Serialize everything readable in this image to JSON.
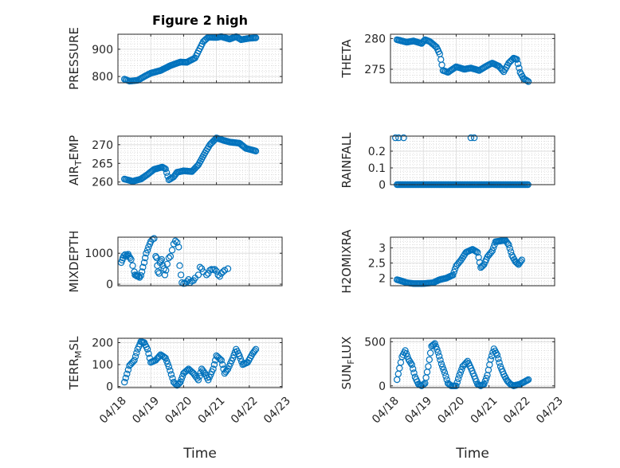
{
  "figure": {
    "title": "Figure 2 high",
    "xlabel": "Time",
    "marker_color": "#0072BD",
    "axis_color": "#262626",
    "x_tick_labels": [
      "04/18",
      "04/19",
      "04/20",
      "04/21",
      "04/22",
      "04/23"
    ]
  },
  "chart_data": [
    {
      "type": "scatter",
      "ylabel": "PRESSURE",
      "x_axis": "time (day)",
      "xlim": [
        18,
        23
      ],
      "ylim": [
        777,
        955
      ],
      "yticks": [
        800,
        900
      ],
      "y_tick_labels": [
        "800",
        "900"
      ],
      "x_tick_labels": [
        "04/18",
        "04/19",
        "04/20",
        "04/21",
        "04/22",
        "04/23"
      ],
      "knots": [
        [
          18.2,
          790
        ],
        [
          18.35,
          783
        ],
        [
          18.6,
          786
        ],
        [
          18.85,
          803
        ],
        [
          19.0,
          812
        ],
        [
          19.3,
          822
        ],
        [
          19.6,
          840
        ],
        [
          19.9,
          853
        ],
        [
          20.1,
          852
        ],
        [
          20.35,
          868
        ],
        [
          20.6,
          928
        ],
        [
          20.75,
          944
        ],
        [
          21.0,
          943
        ],
        [
          21.15,
          946
        ],
        [
          21.4,
          937
        ],
        [
          21.6,
          946
        ],
        [
          21.75,
          935
        ],
        [
          22.0,
          940
        ],
        [
          22.2,
          942
        ]
      ]
    },
    {
      "type": "scatter",
      "ylabel": "THETA",
      "xlim": [
        18,
        23
      ],
      "ylim": [
        272.8,
        280.7
      ],
      "yticks": [
        275,
        280
      ],
      "y_tick_labels": [
        "275",
        "280"
      ],
      "x_tick_labels": [
        "04/18",
        "04/19",
        "04/20",
        "04/21",
        "04/22",
        "04/23"
      ],
      "knots": [
        [
          18.2,
          279.8
        ],
        [
          18.5,
          279.4
        ],
        [
          18.7,
          279.6
        ],
        [
          18.95,
          279.2
        ],
        [
          19.05,
          279.8
        ],
        [
          19.2,
          279.5
        ],
        [
          19.4,
          278.6
        ],
        [
          19.5,
          277.5
        ],
        [
          19.6,
          274.8
        ],
        [
          19.75,
          274.5
        ],
        [
          20.0,
          275.4
        ],
        [
          20.25,
          275.0
        ],
        [
          20.45,
          275.2
        ],
        [
          20.7,
          274.8
        ],
        [
          20.95,
          275.6
        ],
        [
          21.1,
          276.0
        ],
        [
          21.3,
          275.5
        ],
        [
          21.45,
          274.6
        ],
        [
          21.6,
          276.0
        ],
        [
          21.75,
          276.8
        ],
        [
          21.85,
          276.6
        ],
        [
          21.95,
          274.5
        ],
        [
          22.05,
          273.5
        ],
        [
          22.2,
          273.0
        ]
      ]
    },
    {
      "type": "scatter",
      "ylabel": "AIR_TEMP",
      "ylabel_parts": {
        "base": "AIR",
        "sub": "T",
        "rest": "EMP"
      },
      "xlim": [
        18,
        23
      ],
      "ylim": [
        259.3,
        272.3
      ],
      "yticks": [
        260,
        265,
        270
      ],
      "y_tick_labels": [
        "260",
        "265",
        "270"
      ],
      "x_tick_labels": [
        "04/18",
        "04/19",
        "04/20",
        "04/21",
        "04/22",
        "04/23"
      ],
      "knots": [
        [
          18.2,
          260.8
        ],
        [
          18.45,
          260.2
        ],
        [
          18.7,
          260.8
        ],
        [
          18.9,
          262.0
        ],
        [
          19.1,
          263.4
        ],
        [
          19.35,
          264.0
        ],
        [
          19.45,
          263.5
        ],
        [
          19.55,
          260.6
        ],
        [
          19.7,
          261.4
        ],
        [
          19.8,
          262.6
        ],
        [
          20.0,
          263.0
        ],
        [
          20.25,
          262.8
        ],
        [
          20.45,
          264.6
        ],
        [
          20.65,
          267.8
        ],
        [
          20.8,
          270.0
        ],
        [
          21.0,
          271.8
        ],
        [
          21.2,
          271.2
        ],
        [
          21.4,
          270.7
        ],
        [
          21.7,
          270.4
        ],
        [
          21.9,
          269.0
        ],
        [
          22.2,
          268.3
        ]
      ]
    },
    {
      "type": "scatter",
      "ylabel": "RAINFALL",
      "xlim": [
        18,
        23
      ],
      "ylim": [
        0,
        0.29
      ],
      "yticks": [
        0,
        0.1,
        0.2
      ],
      "y_tick_labels": [
        "0",
        "0.1",
        "0.2"
      ],
      "x_tick_labels": [
        "04/18",
        "04/19",
        "04/20",
        "04/21",
        "04/22",
        "04/23"
      ],
      "baseline_range": [
        18.2,
        22.2
      ],
      "baseline_value": 0,
      "spikes": [
        [
          18.15,
          0.28
        ],
        [
          18.25,
          0.28
        ],
        [
          18.4,
          0.28
        ],
        [
          20.45,
          0.28
        ],
        [
          20.55,
          0.28
        ]
      ]
    },
    {
      "type": "scatter",
      "ylabel": "MIXDEPTH",
      "xlim": [
        18,
        23
      ],
      "ylim": [
        -50,
        1520
      ],
      "yticks": [
        0,
        1000
      ],
      "y_tick_labels": [
        "0",
        "1000"
      ],
      "x_tick_labels": [
        "04/18",
        "04/19",
        "04/20",
        "04/21",
        "04/22",
        "04/23"
      ],
      "points": [
        [
          18.1,
          700
        ],
        [
          18.13,
          780
        ],
        [
          18.15,
          850
        ],
        [
          18.18,
          920
        ],
        [
          18.22,
          960
        ],
        [
          18.25,
          900
        ],
        [
          18.28,
          940
        ],
        [
          18.31,
          970
        ],
        [
          18.34,
          900
        ],
        [
          18.37,
          850
        ],
        [
          18.4,
          800
        ],
        [
          18.45,
          600
        ],
        [
          18.5,
          400
        ],
        [
          18.52,
          300
        ],
        [
          18.55,
          280
        ],
        [
          18.58,
          260
        ],
        [
          18.6,
          300
        ],
        [
          18.63,
          250
        ],
        [
          18.66,
          220
        ],
        [
          18.7,
          280
        ],
        [
          18.73,
          400
        ],
        [
          18.76,
          550
        ],
        [
          18.8,
          700
        ],
        [
          18.83,
          850
        ],
        [
          18.86,
          1000
        ],
        [
          18.9,
          1100
        ],
        [
          18.93,
          1200
        ],
        [
          18.97,
          1300
        ],
        [
          19.0,
          1380
        ],
        [
          19.05,
          1450
        ],
        [
          19.1,
          1480
        ],
        [
          19.15,
          900
        ],
        [
          19.18,
          850
        ],
        [
          19.2,
          600
        ],
        [
          19.22,
          400
        ],
        [
          19.25,
          350
        ],
        [
          19.28,
          700
        ],
        [
          19.3,
          750
        ],
        [
          19.33,
          800
        ],
        [
          19.37,
          600
        ],
        [
          19.4,
          500
        ],
        [
          19.43,
          300
        ],
        [
          19.46,
          450
        ],
        [
          19.5,
          650
        ],
        [
          19.55,
          850
        ],
        [
          19.6,
          900
        ],
        [
          19.65,
          1100
        ],
        [
          19.7,
          1300
        ],
        [
          19.75,
          1400
        ],
        [
          19.8,
          1350
        ],
        [
          19.85,
          1200
        ],
        [
          19.88,
          600
        ],
        [
          19.92,
          300
        ],
        [
          19.95,
          50
        ],
        [
          20.0,
          20
        ],
        [
          20.05,
          30
        ],
        [
          20.1,
          80
        ],
        [
          20.15,
          150
        ],
        [
          20.2,
          50
        ],
        [
          20.25,
          100
        ],
        [
          20.3,
          120
        ],
        [
          20.35,
          200
        ],
        [
          20.45,
          300
        ],
        [
          20.5,
          550
        ],
        [
          20.55,
          500
        ],
        [
          20.6,
          400
        ],
        [
          20.7,
          300
        ],
        [
          20.75,
          350
        ],
        [
          20.8,
          450
        ],
        [
          20.85,
          480
        ],
        [
          20.9,
          470
        ],
        [
          20.95,
          480
        ],
        [
          21.0,
          420
        ],
        [
          21.05,
          300
        ],
        [
          21.1,
          250
        ],
        [
          21.15,
          350
        ],
        [
          21.2,
          400
        ],
        [
          21.25,
          450
        ],
        [
          21.35,
          500
        ]
      ]
    },
    {
      "type": "scatter",
      "ylabel": "H2OMIXRA",
      "xlim": [
        18,
        23
      ],
      "ylim": [
        1.75,
        3.35
      ],
      "yticks": [
        2,
        2.5,
        3
      ],
      "y_tick_labels": [
        "2",
        "2.5",
        "3"
      ],
      "x_tick_labels": [
        "04/18",
        "04/19",
        "04/20",
        "04/21",
        "04/22",
        "04/23"
      ],
      "knots": [
        [
          18.2,
          1.95
        ],
        [
          18.5,
          1.85
        ],
        [
          18.7,
          1.82
        ],
        [
          19.0,
          1.82
        ],
        [
          19.3,
          1.85
        ],
        [
          19.5,
          1.95
        ],
        [
          19.7,
          2.0
        ],
        [
          19.9,
          2.1
        ],
        [
          20.0,
          2.4
        ],
        [
          20.15,
          2.6
        ],
        [
          20.3,
          2.85
        ],
        [
          20.5,
          2.95
        ],
        [
          20.65,
          2.85
        ],
        [
          20.75,
          2.35
        ],
        [
          20.85,
          2.45
        ],
        [
          20.95,
          2.7
        ],
        [
          21.1,
          2.9
        ],
        [
          21.2,
          3.2
        ],
        [
          21.5,
          3.25
        ],
        [
          21.6,
          3.1
        ],
        [
          21.7,
          2.75
        ],
        [
          21.8,
          2.55
        ],
        [
          21.9,
          2.45
        ],
        [
          22.0,
          2.6
        ]
      ]
    },
    {
      "type": "scatter",
      "ylabel": "TERR_MSL",
      "ylabel_parts": {
        "base": "TERR",
        "sub": "M",
        "rest": "SL"
      },
      "xlim": [
        18,
        23
      ],
      "ylim": [
        -5,
        220
      ],
      "yticks": [
        0,
        100,
        200
      ],
      "y_tick_labels": [
        "0",
        "100",
        "200"
      ],
      "x_tick_labels": [
        "04/18",
        "04/19",
        "04/20",
        "04/21",
        "04/22",
        "04/23"
      ],
      "knots": [
        [
          18.2,
          20
        ],
        [
          18.35,
          95
        ],
        [
          18.5,
          120
        ],
        [
          18.6,
          170
        ],
        [
          18.7,
          205
        ],
        [
          18.8,
          200
        ],
        [
          18.9,
          170
        ],
        [
          19.0,
          110
        ],
        [
          19.15,
          120
        ],
        [
          19.3,
          145
        ],
        [
          19.45,
          130
        ],
        [
          19.55,
          90
        ],
        [
          19.7,
          20
        ],
        [
          19.8,
          5
        ],
        [
          19.9,
          20
        ],
        [
          20.0,
          60
        ],
        [
          20.15,
          80
        ],
        [
          20.3,
          60
        ],
        [
          20.45,
          30
        ],
        [
          20.55,
          80
        ],
        [
          20.65,
          60
        ],
        [
          20.75,
          30
        ],
        [
          20.9,
          80
        ],
        [
          21.0,
          140
        ],
        [
          21.15,
          120
        ],
        [
          21.25,
          60
        ],
        [
          21.35,
          80
        ],
        [
          21.5,
          130
        ],
        [
          21.6,
          170
        ],
        [
          21.7,
          140
        ],
        [
          21.8,
          100
        ],
        [
          21.95,
          110
        ],
        [
          22.1,
          150
        ],
        [
          22.2,
          170
        ]
      ]
    },
    {
      "type": "scatter",
      "ylabel": "SUN_FLUX",
      "ylabel_parts": {
        "base": "SUN",
        "sub": "F",
        "rest": "LUX"
      },
      "xlim": [
        18,
        23
      ],
      "ylim": [
        -20,
        540
      ],
      "yticks": [
        0,
        500
      ],
      "y_tick_labels": [
        "0",
        "500"
      ],
      "x_tick_labels": [
        "04/18",
        "04/19",
        "04/20",
        "04/21",
        "04/22",
        "04/23"
      ],
      "knots": [
        [
          18.2,
          70
        ],
        [
          18.35,
          330
        ],
        [
          18.45,
          400
        ],
        [
          18.55,
          300
        ],
        [
          18.65,
          240
        ],
        [
          18.75,
          100
        ],
        [
          18.85,
          20
        ],
        [
          18.95,
          0
        ],
        [
          19.05,
          30
        ],
        [
          19.15,
          220
        ],
        [
          19.25,
          450
        ],
        [
          19.35,
          480
        ],
        [
          19.45,
          380
        ],
        [
          19.55,
          250
        ],
        [
          19.65,
          150
        ],
        [
          19.75,
          30
        ],
        [
          19.85,
          0
        ],
        [
          20.0,
          0
        ],
        [
          20.1,
          120
        ],
        [
          20.2,
          220
        ],
        [
          20.35,
          280
        ],
        [
          20.45,
          200
        ],
        [
          20.55,
          110
        ],
        [
          20.65,
          20
        ],
        [
          20.75,
          0
        ],
        [
          20.85,
          20
        ],
        [
          20.95,
          120
        ],
        [
          21.05,
          300
        ],
        [
          21.15,
          420
        ],
        [
          21.25,
          350
        ],
        [
          21.35,
          220
        ],
        [
          21.45,
          130
        ],
        [
          21.55,
          60
        ],
        [
          21.65,
          20
        ],
        [
          21.75,
          0
        ],
        [
          21.85,
          10
        ],
        [
          21.95,
          20
        ],
        [
          22.1,
          50
        ],
        [
          22.2,
          70
        ]
      ]
    }
  ]
}
